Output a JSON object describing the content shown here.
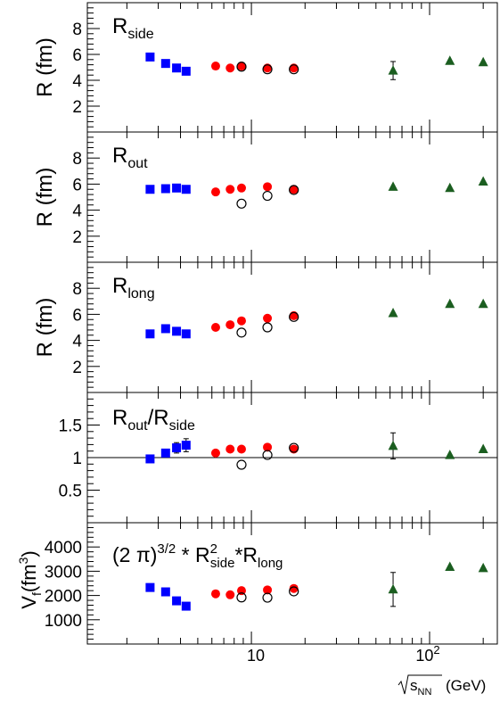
{
  "chart_data": {
    "type": "scatter",
    "x_scale": "log",
    "xlabel_sqrt": "s",
    "xlabel_sub": "NN",
    "xlabel_unit": "(GeV)",
    "x_tick_labels": [
      {
        "value": 10,
        "text": "10"
      },
      {
        "value": 100,
        "base": "10",
        "exp": "2"
      }
    ],
    "colors": {
      "square": "#0000ff",
      "circle": "#ff0000",
      "open": "#000000",
      "triangle": "#1b5e20"
    },
    "panels": [
      {
        "id": "side",
        "ylabel": "R (fm)",
        "label_main": "R",
        "label_sub": "side",
        "ylim": [
          0,
          10
        ],
        "y_ticks": [
          2,
          4,
          6,
          8
        ],
        "y_tick_labels": [
          "2",
          "4",
          "6",
          "8"
        ],
        "series": [
          {
            "marker": "square",
            "x": [
              2.7,
              3.3,
              3.8,
              4.3
            ],
            "y": [
              5.8,
              5.3,
              4.95,
              4.7
            ]
          },
          {
            "marker": "circle",
            "x": [
              6.3,
              7.6,
              8.8,
              12.3,
              17.3
            ],
            "y": [
              5.1,
              4.95,
              5.1,
              4.95,
              4.95
            ]
          },
          {
            "marker": "open",
            "x": [
              8.8,
              12.3,
              17.3
            ],
            "y": [
              5.05,
              4.85,
              4.85
            ]
          },
          {
            "marker": "triangle",
            "x": [
              62.4,
              130,
              200
            ],
            "y": [
              4.75,
              5.5,
              5.4
            ],
            "err": [
              0.7,
              0,
              0
            ]
          }
        ]
      },
      {
        "id": "out",
        "ylabel": "R (fm)",
        "label_main": "R",
        "label_sub": "out",
        "ylim": [
          0,
          10
        ],
        "y_ticks": [
          2,
          4,
          6,
          8
        ],
        "y_tick_labels": [
          "2",
          "4",
          "6",
          "8"
        ],
        "series": [
          {
            "marker": "square",
            "x": [
              2.7,
              3.3,
              3.8,
              4.3
            ],
            "y": [
              5.6,
              5.65,
              5.7,
              5.6
            ]
          },
          {
            "marker": "circle",
            "x": [
              6.3,
              7.6,
              8.8,
              12.3,
              17.3
            ],
            "y": [
              5.4,
              5.6,
              5.7,
              5.8,
              5.6
            ]
          },
          {
            "marker": "open",
            "x": [
              8.8,
              12.3,
              17.3
            ],
            "y": [
              4.5,
              5.1,
              5.55
            ]
          },
          {
            "marker": "triangle",
            "x": [
              62.4,
              130,
              200
            ],
            "y": [
              5.8,
              5.7,
              6.2
            ],
            "err": [
              0,
              0,
              0
            ]
          }
        ]
      },
      {
        "id": "long",
        "ylabel": "R (fm)",
        "label_main": "R",
        "label_sub": "long",
        "ylim": [
          0,
          10
        ],
        "y_ticks": [
          2,
          4,
          6,
          8
        ],
        "y_tick_labels": [
          "2",
          "4",
          "6",
          "8"
        ],
        "series": [
          {
            "marker": "square",
            "x": [
              2.7,
              3.3,
              3.8,
              4.3
            ],
            "y": [
              4.5,
              4.9,
              4.7,
              4.5
            ]
          },
          {
            "marker": "circle",
            "x": [
              6.3,
              7.6,
              8.8,
              12.3,
              17.3
            ],
            "y": [
              5.0,
              5.2,
              5.5,
              5.7,
              5.9
            ]
          },
          {
            "marker": "open",
            "x": [
              8.8,
              12.3,
              17.3
            ],
            "y": [
              4.6,
              5.0,
              5.8
            ]
          },
          {
            "marker": "triangle",
            "x": [
              62.4,
              130,
              200
            ],
            "y": [
              6.1,
              6.8,
              6.8
            ],
            "err": [
              0,
              0,
              0
            ]
          }
        ]
      },
      {
        "id": "ratio",
        "ylabel": "",
        "label_main": "R",
        "label_sub": "out",
        "label_mid": "/R",
        "label_sub2": "side",
        "ylim": [
          0,
          2
        ],
        "y_ticks": [
          0.5,
          1,
          1.5
        ],
        "y_tick_labels": [
          "0.5",
          "1",
          "1.5"
        ],
        "ref_line": 1,
        "series": [
          {
            "marker": "square",
            "x": [
              2.7,
              3.3,
              3.8,
              4.3
            ],
            "y": [
              0.98,
              1.07,
              1.15,
              1.19
            ],
            "err": [
              0,
              0,
              0.08,
              0.1
            ]
          },
          {
            "marker": "circle",
            "x": [
              6.3,
              7.6,
              8.8,
              12.3,
              17.3
            ],
            "y": [
              1.07,
              1.13,
              1.13,
              1.16,
              1.13
            ]
          },
          {
            "marker": "open",
            "x": [
              8.8,
              12.3,
              17.3
            ],
            "y": [
              0.89,
              1.04,
              1.15
            ]
          },
          {
            "marker": "triangle",
            "x": [
              62.4,
              130,
              200
            ],
            "y": [
              1.18,
              1.04,
              1.13
            ],
            "err": [
              0.2,
              0,
              0
            ]
          }
        ]
      },
      {
        "id": "vol",
        "ylabel_main": "V",
        "ylabel_sub": "f",
        "ylabel_unit_a": "(fm",
        "ylabel_sup": "3",
        "ylabel_unit_b": ")",
        "formula": {
          "a": "(2 π)",
          "b": "3/2",
          "c": " * R",
          "d": "2",
          "e": "side",
          "f": "*R",
          "g": "long"
        },
        "ylim": [
          0,
          5000
        ],
        "y_ticks": [
          1000,
          2000,
          3000,
          4000
        ],
        "y_tick_labels": [
          "1000",
          "2000",
          "3000",
          "4000"
        ],
        "series": [
          {
            "marker": "square",
            "x": [
              2.7,
              3.3,
              3.8,
              4.3
            ],
            "y": [
              2330,
              2150,
              1780,
              1560
            ]
          },
          {
            "marker": "circle",
            "x": [
              6.3,
              7.6,
              8.8,
              12.3,
              17.3
            ],
            "y": [
              2070,
              2030,
              2200,
              2230,
              2290
            ]
          },
          {
            "marker": "open",
            "x": [
              8.8,
              12.3,
              17.3
            ],
            "y": [
              1920,
              1910,
              2170
            ]
          },
          {
            "marker": "triangle",
            "x": [
              62.4,
              130,
              200
            ],
            "y": [
              2250,
              3180,
              3130
            ],
            "err": [
              700,
              0,
              0
            ]
          }
        ]
      }
    ]
  }
}
